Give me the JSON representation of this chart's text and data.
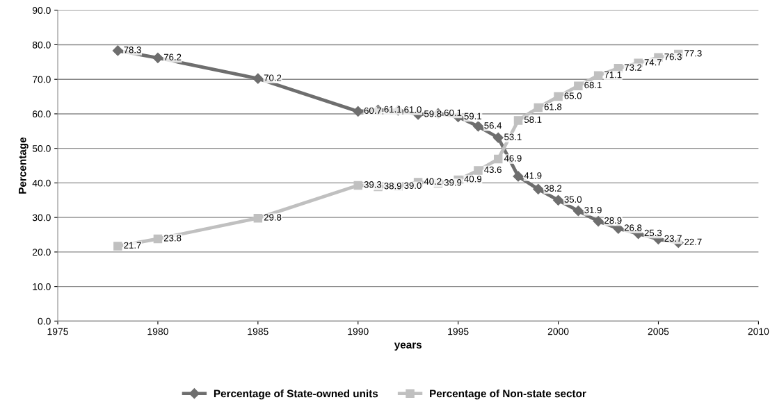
{
  "chart_data": {
    "type": "line",
    "xlabel": "years",
    "ylabel": "Percentage",
    "x": [
      1978,
      1980,
      1985,
      1990,
      1991,
      1992,
      1993,
      1994,
      1995,
      1996,
      1997,
      1998,
      1999,
      2000,
      2001,
      2002,
      2003,
      2004,
      2005,
      2006
    ],
    "series": [
      {
        "name": "Percentage of State-owned units",
        "color": "#6e6e6e",
        "marker": "diamond",
        "values": [
          78.3,
          76.2,
          70.2,
          60.7,
          61.1,
          61.0,
          59.8,
          60.1,
          59.1,
          56.4,
          53.1,
          41.9,
          38.2,
          35.0,
          31.9,
          28.9,
          26.8,
          25.3,
          23.7,
          22.7
        ],
        "value_labels": [
          "78.3",
          "76.2",
          "70.2",
          "60.7",
          "61.1",
          "61.0",
          "59.8",
          "60.1",
          "59.1",
          "56.4",
          "53.1",
          "41.9",
          "38.2",
          "35.0",
          "31.9",
          "28.9",
          "26.8",
          "25.3",
          "23.7",
          "22.7"
        ]
      },
      {
        "name": "Percentage of Non-state sector",
        "color": "#c0c0c0",
        "marker": "square",
        "values": [
          21.7,
          23.8,
          29.8,
          39.3,
          38.9,
          39.0,
          40.2,
          39.9,
          40.9,
          43.6,
          46.9,
          58.1,
          61.8,
          65.0,
          68.1,
          71.1,
          73.2,
          74.7,
          76.3,
          77.3
        ],
        "value_labels": [
          "21.7",
          "23.8",
          "29.8",
          "39.3",
          "38.9",
          "39.0",
          "40.2",
          "39.9",
          "40.9",
          "43.6",
          "46.9",
          "58.1",
          "61.8",
          "65.0",
          "68.1",
          "71.1",
          "73.2",
          "74.7",
          "76.3",
          "77.3"
        ]
      }
    ],
    "xlim": [
      1975,
      2010
    ],
    "xticks": [
      1975,
      1980,
      1985,
      1990,
      1995,
      2000,
      2005,
      2010
    ],
    "ylim": [
      0,
      90
    ],
    "yticks": [
      {
        "value": 0,
        "label": "0.0"
      },
      {
        "value": 10,
        "label": "10.0"
      },
      {
        "value": 20,
        "label": "20.0"
      },
      {
        "value": 30,
        "label": "30.0"
      },
      {
        "value": 40,
        "label": "40.0"
      },
      {
        "value": 50,
        "label": "50.0"
      },
      {
        "value": 60,
        "label": "60.0"
      },
      {
        "value": 70,
        "label": "70.0"
      },
      {
        "value": 80,
        "label": "80.0"
      },
      {
        "value": 90,
        "label": "90.0"
      }
    ],
    "grid": "y",
    "legend": "bottom",
    "line_style": "solid"
  }
}
